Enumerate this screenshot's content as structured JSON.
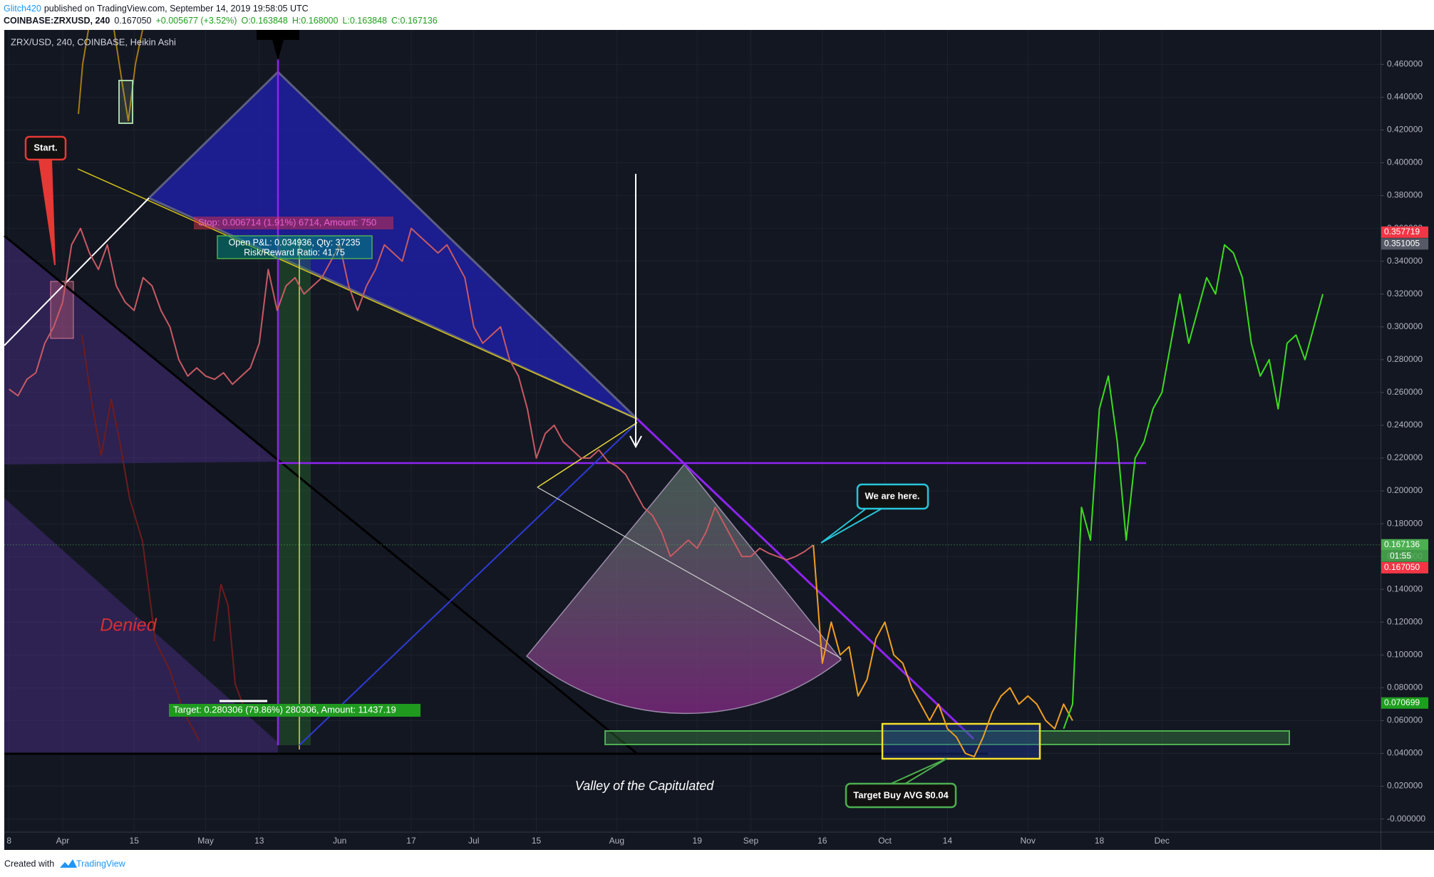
{
  "header": {
    "publisher": "Glitch420",
    "published": "published on TradingView.com, September 14, 2019 19:58:05 UTC",
    "symbol": "COINBASE:ZRXUSD, 240",
    "last": "0.167050",
    "change": "+0.005677 (+3.52%)",
    "ohlc": [
      "O:0.163848",
      "H:0.168000",
      "L:0.163848",
      "C:0.167136"
    ]
  },
  "footer": {
    "created": "Created with",
    "brand": "TradingView"
  },
  "chart_data": {
    "type": "line",
    "title": "ZRX/USD, 240, COINBASE, Heikin Ashi",
    "grid": true,
    "categories": [
      "8",
      null,
      null,
      null,
      null,
      null,
      "Apr",
      null,
      null,
      null,
      null,
      null,
      null,
      null,
      "15",
      null,
      null,
      null,
      null,
      null,
      null,
      null,
      "May",
      null,
      null,
      null,
      null,
      null,
      "13",
      null,
      null,
      null,
      null,
      null,
      null,
      null,
      null,
      "Jun",
      null,
      null,
      null,
      null,
      null,
      null,
      null,
      "17",
      null,
      null,
      null,
      null,
      null,
      null,
      "Jul",
      null,
      null,
      null,
      null,
      null,
      null,
      "15",
      null,
      null,
      null,
      null,
      null,
      null,
      null,
      null,
      "Aug",
      null,
      null,
      null,
      null,
      null,
      null,
      null,
      null,
      "19",
      null,
      null,
      null,
      null,
      null,
      "Sep",
      null,
      null,
      null,
      null,
      null,
      null,
      null,
      "16",
      null,
      null,
      null,
      null,
      null,
      null,
      "Oct",
      null,
      null,
      null,
      null,
      null,
      null,
      "14",
      null,
      null,
      null,
      null,
      null,
      null,
      null,
      null,
      "Nov",
      null,
      null,
      null,
      null,
      null,
      null,
      null,
      "18",
      null,
      null,
      null,
      null,
      null,
      null,
      "Dec",
      null,
      null,
      null,
      null,
      null,
      null,
      null,
      null,
      null,
      null,
      null,
      null,
      null,
      null,
      null,
      null,
      null,
      null,
      null,
      null,
      null,
      null,
      null,
      null
    ],
    "series": [
      {
        "color": "#c75a63",
        "values": [
          0.262,
          0.258,
          0.268,
          0.272,
          0.29,
          0.3,
          0.315,
          0.35,
          0.36,
          0.345,
          0.335,
          0.35,
          0.325,
          0.315,
          0.31,
          0.33,
          0.325,
          0.31,
          0.3,
          0.28,
          0.27,
          0.275,
          0.27,
          0.268,
          0.272,
          0.265,
          0.27,
          0.275,
          0.29,
          0.335,
          0.31,
          0.325,
          0.33,
          0.32,
          0.325,
          0.33,
          0.34,
          0.35,
          0.325,
          0.31,
          0.325,
          0.335,
          0.35,
          0.345,
          0.34,
          0.36,
          0.355,
          0.35,
          0.345,
          0.35,
          0.34,
          0.33,
          0.3,
          0.29,
          0.295,
          0.3,
          0.28,
          0.27,
          0.25,
          0.22,
          0.235,
          0.24,
          0.23,
          0.225,
          0.22,
          0.22,
          0.225,
          0.218,
          0.215,
          0.21,
          0.2,
          0.19,
          0.185,
          0.175,
          0.16,
          0.165,
          0.17,
          0.165,
          0.175,
          0.19,
          0.18,
          0.17,
          0.16,
          0.16,
          0.165,
          0.162,
          0.16,
          0.158,
          0.16,
          0.163,
          0.167,
          null,
          null,
          null,
          null,
          null,
          null,
          null,
          null,
          null,
          null,
          null,
          null,
          null,
          null,
          null,
          null,
          null,
          null,
          null,
          null,
          null,
          null,
          null,
          null,
          null,
          null,
          null,
          null,
          null,
          null,
          null,
          null,
          null,
          null,
          null,
          null,
          null,
          null,
          null,
          null,
          null,
          null,
          null,
          null,
          null,
          null,
          null,
          null,
          null,
          null,
          null,
          null,
          null,
          null,
          null,
          null,
          null,
          null,
          null,
          null,
          null,
          null,
          null
        ]
      },
      {
        "color": "#f0a020",
        "values": [
          null,
          null,
          null,
          null,
          null,
          null,
          null,
          null,
          null,
          null,
          null,
          null,
          null,
          null,
          null,
          null,
          null,
          null,
          null,
          null,
          null,
          null,
          null,
          null,
          null,
          null,
          null,
          null,
          null,
          null,
          null,
          null,
          null,
          null,
          null,
          null,
          null,
          null,
          null,
          null,
          null,
          null,
          null,
          null,
          null,
          null,
          null,
          null,
          null,
          null,
          null,
          null,
          null,
          null,
          null,
          null,
          null,
          null,
          null,
          null,
          null,
          null,
          null,
          null,
          null,
          null,
          null,
          null,
          null,
          null,
          null,
          null,
          null,
          null,
          null,
          null,
          null,
          null,
          null,
          null,
          null,
          null,
          null,
          null,
          null,
          null,
          null,
          null,
          null,
          null,
          0.167,
          0.095,
          0.12,
          0.1,
          0.105,
          0.075,
          0.085,
          0.11,
          0.12,
          0.1,
          0.095,
          0.08,
          0.07,
          0.06,
          0.07,
          0.055,
          0.05,
          0.04,
          0.038,
          0.05,
          0.065,
          0.075,
          0.08,
          0.07,
          0.075,
          0.07,
          0.06,
          0.055,
          0.07,
          0.06,
          null,
          null,
          null,
          null,
          null,
          null,
          null,
          null,
          null,
          null,
          null,
          null,
          null,
          null,
          null,
          null,
          null,
          null,
          null,
          null,
          null,
          null,
          null,
          null,
          null,
          null,
          null,
          null,
          null,
          null,
          null,
          null,
          null,
          null
        ]
      },
      {
        "color": "#3ddc1f",
        "values": [
          null,
          null,
          null,
          null,
          null,
          null,
          null,
          null,
          null,
          null,
          null,
          null,
          null,
          null,
          null,
          null,
          null,
          null,
          null,
          null,
          null,
          null,
          null,
          null,
          null,
          null,
          null,
          null,
          null,
          null,
          null,
          null,
          null,
          null,
          null,
          null,
          null,
          null,
          null,
          null,
          null,
          null,
          null,
          null,
          null,
          null,
          null,
          null,
          null,
          null,
          null,
          null,
          null,
          null,
          null,
          null,
          null,
          null,
          null,
          null,
          null,
          null,
          null,
          null,
          null,
          null,
          null,
          null,
          null,
          null,
          null,
          null,
          null,
          null,
          null,
          null,
          null,
          null,
          null,
          null,
          null,
          null,
          null,
          null,
          null,
          null,
          null,
          null,
          null,
          null,
          null,
          null,
          null,
          null,
          null,
          null,
          null,
          null,
          null,
          null,
          null,
          null,
          null,
          null,
          null,
          null,
          null,
          null,
          null,
          null,
          null,
          null,
          null,
          null,
          null,
          null,
          null,
          null,
          0.055,
          0.07,
          0.19,
          0.17,
          0.25,
          0.27,
          0.23,
          0.17,
          0.22,
          0.23,
          0.25,
          0.26,
          0.29,
          0.32,
          0.29,
          0.31,
          0.33,
          0.32,
          0.35,
          0.345,
          0.33,
          0.29,
          0.27,
          0.28,
          0.25,
          0.29,
          0.295,
          0.28,
          0.3,
          0.32,
          null,
          null,
          null,
          null,
          null,
          null
        ]
      }
    ],
    "ylim": [
      -0.008,
      0.481
    ],
    "yticks": [
      {
        "value": 0,
        "label": "-0.000000"
      },
      {
        "value": 0.02,
        "label": "0.020000"
      },
      {
        "value": 0.04,
        "label": "0.040000"
      },
      {
        "value": 0.06,
        "label": "0.060000"
      },
      {
        "value": 0.08,
        "label": "0.080000"
      },
      {
        "value": 0.1,
        "label": "0.100000"
      },
      {
        "value": 0.12,
        "label": "0.120000"
      },
      {
        "value": 0.14,
        "label": "0.140000"
      },
      {
        "value": 0.16,
        "label": "0.160000"
      },
      {
        "value": 0.18,
        "label": "0.180000"
      },
      {
        "value": 0.2,
        "label": "0.200000"
      },
      {
        "value": 0.22,
        "label": "0.220000"
      },
      {
        "value": 0.24,
        "label": "0.240000"
      },
      {
        "value": 0.26,
        "label": "0.260000"
      },
      {
        "value": 0.28,
        "label": "0.280000"
      },
      {
        "value": 0.3,
        "label": "0.300000"
      },
      {
        "value": 0.32,
        "label": "0.320000"
      },
      {
        "value": 0.34,
        "label": "0.340000"
      },
      {
        "value": 0.36,
        "label": "0.360000"
      },
      {
        "value": 0.38,
        "label": "0.380000"
      },
      {
        "value": 0.4,
        "label": "0.400000"
      },
      {
        "value": 0.42,
        "label": "0.420000"
      },
      {
        "value": 0.44,
        "label": "0.440000"
      },
      {
        "value": 0.46,
        "label": "0.460000"
      }
    ],
    "price_labels": [
      {
        "value": 0.357719,
        "color": "#f23645"
      },
      {
        "value": 0.351005,
        "color": "#555a66"
      },
      {
        "value": 0.167136,
        "color": "#4caf50",
        "dotted": true
      },
      {
        "value": 0.16705,
        "label": "0.167050",
        "color": "#f23645"
      },
      {
        "value": 0.070699,
        "color": "#1e9e1e"
      }
    ],
    "countdown": "01:55",
    "annotations": {
      "start": "Start.",
      "stop": "Stop: 0.006714 (1.91%) 6714, Amount: 750",
      "open_pnl": "Open P&L: 0.034936, Qty: 37235",
      "risk_reward": "Risk/Reward Ratio: 41.75",
      "target": "Target: 0.280306 (79.86%) 280306, Amount: 11437.19",
      "denied": "Denied",
      "here": "We are here.",
      "valley": "Valley of the Capitulated",
      "buy": "Target Buy AVG $0.04"
    }
  }
}
